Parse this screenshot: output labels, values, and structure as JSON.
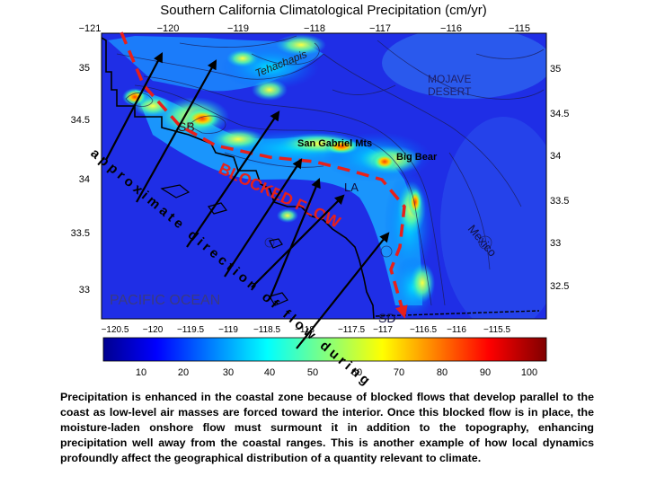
{
  "title": "Southern California Climatological Precipitation (cm/yr)",
  "top_axis_ticks": [
    "−121",
    "−120",
    "−119",
    "−118",
    "−117",
    "−116",
    "−115"
  ],
  "bottom_axis_ticks": [
    "−120.5",
    "−120",
    "−119.5",
    "−119",
    "−118.5",
    "−118",
    "−117.5",
    "−117",
    "−116.5",
    "−116",
    "−115.5"
  ],
  "left_axis_ticks": [
    "35",
    "34.5",
    "34",
    "33.5",
    "33"
  ],
  "right_axis_ticks": [
    "35",
    "34.5",
    "34",
    "33.5",
    "33",
    "32.5"
  ],
  "colorbar": {
    "ticks": [
      "10",
      "20",
      "30",
      "40",
      "50",
      "60",
      "70",
      "80",
      "90",
      "100"
    ],
    "colors": [
      "#00008f",
      "#0000ff",
      "#0080ff",
      "#00ffff",
      "#80ff80",
      "#ffff00",
      "#ff8000",
      "#ff0000",
      "#800000"
    ]
  },
  "labels": {
    "tehachapis": "Tehachapis",
    "mojave": [
      "MOJAVE",
      "DESERT"
    ],
    "sb": "SB",
    "san_gabriel": "San Gabriel Mts",
    "big_bear": "Big Bear",
    "la": "LA",
    "blocked_flow": "BLOCKED FLOW",
    "pacific": "PACIFIC OCEAN",
    "sd": "SD",
    "mexico": "Mexico",
    "diagonal": "approximate direction of flow during rain events"
  },
  "caption": "Precipitation is enhanced in the coastal zone because of blocked flows that develop parallel to the coast as low-level air masses are forced toward the interior.  Once this blocked flow is in place, the moisture-laden onshore flow must surmount it in addition to the topography, enhancing precipitation well away from the coastal ranges.  This is another example of how local dynamics profoundly affect the geographical distribution of a quantity relevant to climate.",
  "colors": {
    "blocked_flow": "#e8201a",
    "flow_arrows": "#000000"
  }
}
